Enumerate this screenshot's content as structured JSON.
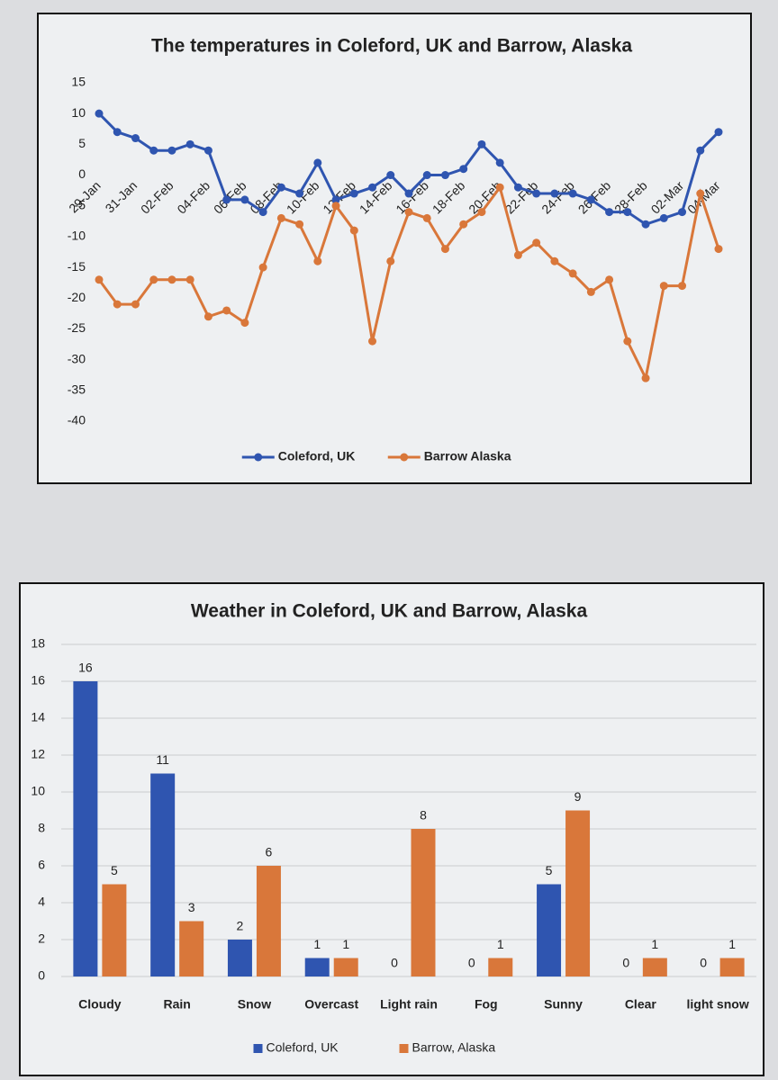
{
  "chart_data": [
    {
      "type": "line",
      "title": "The temperatures in Coleford, UK and Barrow, Alaska",
      "categories": [
        "29-Jan",
        null,
        "31-Jan",
        null,
        "02-Feb",
        null,
        "04-Feb",
        null,
        "06-Feb",
        null,
        "08-Feb",
        null,
        "10-Feb",
        null,
        "12-Feb",
        null,
        "14-Feb",
        null,
        "16-Feb",
        null,
        "18-Feb",
        null,
        "20-Feb",
        null,
        "22-Feb",
        null,
        "24-Feb",
        null,
        "26-Feb",
        null,
        "28-Feb",
        null,
        "02-Mar",
        null,
        "04-Mar"
      ],
      "series": [
        {
          "name": "Coleford, UK",
          "color": "#2f55b0",
          "values": [
            10,
            7,
            6,
            4,
            4,
            5,
            4,
            -4,
            -4,
            -6,
            -2,
            -3,
            2,
            -4,
            -3,
            -2,
            0,
            -3,
            0,
            0,
            1,
            5,
            2,
            -2,
            -3,
            -3,
            -3,
            -4,
            -6,
            -6,
            -8,
            -7,
            -6,
            4,
            7
          ]
        },
        {
          "name": "Barrow Alaska",
          "color": "#d9773a",
          "values": [
            -17,
            -21,
            -21,
            -17,
            -17,
            -17,
            -23,
            -22,
            -24,
            -15,
            -7,
            -8,
            -14,
            -5,
            -9,
            -27,
            -14,
            -6,
            -7,
            -12,
            -8,
            -6,
            -2,
            -13,
            -11,
            -14,
            -16,
            -19,
            -17,
            -27,
            -33,
            -18,
            -18,
            -3,
            -12
          ]
        }
      ],
      "ylim": [
        -40,
        15
      ],
      "yticks": [
        -40,
        -35,
        -30,
        -25,
        -20,
        -15,
        -10,
        -5,
        0,
        5,
        10,
        15
      ],
      "grid": false,
      "legend": "bottom"
    },
    {
      "type": "bar",
      "title": "Weather in Coleford, UK and Barrow, Alaska",
      "categories": [
        "Cloudy",
        "Rain",
        "Snow",
        "Overcast",
        "Light rain",
        "Fog",
        "Sunny",
        "Clear",
        "light snow"
      ],
      "series": [
        {
          "name": "Coleford, UK",
          "color": "#2f55b0",
          "values": [
            16,
            11,
            2,
            1,
            0,
            0,
            5,
            0,
            0
          ]
        },
        {
          "name": "Barrow, Alaska",
          "color": "#d9773a",
          "values": [
            5,
            3,
            6,
            1,
            8,
            1,
            9,
            1,
            1
          ]
        }
      ],
      "ylim": [
        0,
        18
      ],
      "yticks": [
        0,
        2,
        4,
        6,
        8,
        10,
        12,
        14,
        16,
        18
      ],
      "grid": true,
      "legend": "bottom"
    }
  ]
}
